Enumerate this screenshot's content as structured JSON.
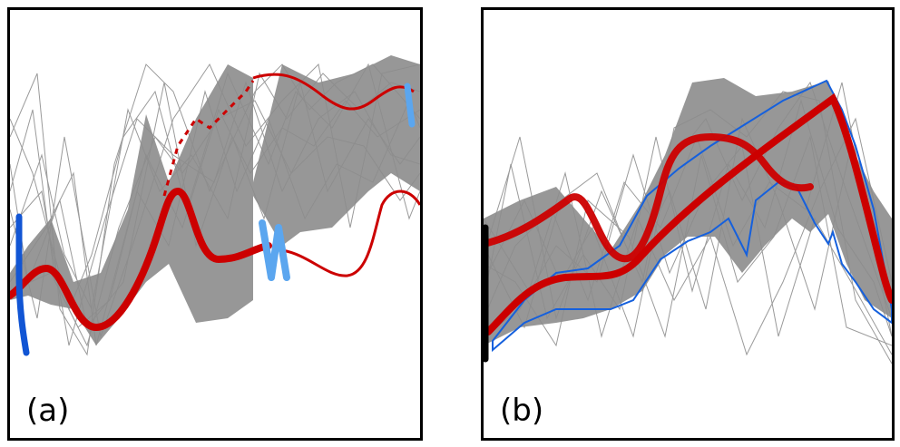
{
  "figure": {
    "panels": [
      {
        "label": "(a)"
      },
      {
        "label": "(b)"
      }
    ]
  },
  "colors": {
    "thin_curve": "#9a9a9a",
    "band_fill": "#8c8c8c",
    "main_curve": "#cc0000",
    "marker_dark_blue": "#1155d4",
    "marker_light_blue": "#5ba6ef",
    "outline_blue": "#1560dd",
    "edge_marker": "#000000"
  },
  "icons": {
    "marker_a_left": "vertical-dark-blue-stroke",
    "marker_a_mid": "light-blue-n-glyph",
    "marker_a_right": "light-blue-stroke",
    "marker_b_left": "black-edge-stroke"
  }
}
